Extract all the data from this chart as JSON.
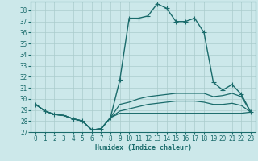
{
  "xlabel": "Humidex (Indice chaleur)",
  "ylabel": "",
  "xlim": [
    -0.5,
    23.5
  ],
  "ylim": [
    27,
    38.8
  ],
  "yticks": [
    27,
    28,
    29,
    30,
    31,
    32,
    33,
    34,
    35,
    36,
    37,
    38
  ],
  "xticks": [
    0,
    1,
    2,
    3,
    4,
    5,
    6,
    7,
    8,
    9,
    10,
    11,
    12,
    13,
    14,
    15,
    16,
    17,
    18,
    19,
    20,
    21,
    22,
    23
  ],
  "bg_color": "#cce8ea",
  "grid_color": "#aacccc",
  "line_color": "#1a6b6b",
  "lines": [
    {
      "x": [
        0,
        1,
        2,
        3,
        4,
        5,
        6,
        7,
        8,
        9,
        10,
        11,
        12,
        13,
        14,
        15,
        16,
        17,
        18,
        19,
        20,
        21,
        22,
        23
      ],
      "y": [
        29.5,
        28.9,
        28.6,
        28.5,
        28.2,
        28.0,
        27.2,
        27.3,
        28.3,
        31.7,
        37.3,
        37.3,
        37.5,
        38.6,
        38.2,
        37.0,
        37.0,
        37.3,
        36.0,
        31.5,
        30.8,
        31.3,
        30.4,
        28.8
      ],
      "marker": "+",
      "markersize": 4,
      "linewidth": 1.0
    },
    {
      "x": [
        0,
        1,
        2,
        3,
        4,
        5,
        6,
        7,
        8,
        9,
        10,
        11,
        12,
        13,
        14,
        15,
        16,
        17,
        18,
        19,
        20,
        21,
        22,
        23
      ],
      "y": [
        29.5,
        28.9,
        28.6,
        28.5,
        28.2,
        28.0,
        27.2,
        27.3,
        28.3,
        29.5,
        29.7,
        30.0,
        30.2,
        30.3,
        30.4,
        30.5,
        30.5,
        30.5,
        30.5,
        30.2,
        30.3,
        30.5,
        30.2,
        28.8
      ],
      "marker": null,
      "linewidth": 0.9
    },
    {
      "x": [
        0,
        1,
        2,
        3,
        4,
        5,
        6,
        7,
        8,
        9,
        10,
        11,
        12,
        13,
        14,
        15,
        16,
        17,
        18,
        19,
        20,
        21,
        22,
        23
      ],
      "y": [
        29.5,
        28.9,
        28.6,
        28.5,
        28.2,
        28.0,
        27.2,
        27.3,
        28.3,
        28.9,
        29.1,
        29.3,
        29.5,
        29.6,
        29.7,
        29.8,
        29.8,
        29.8,
        29.7,
        29.5,
        29.5,
        29.6,
        29.4,
        28.8
      ],
      "marker": null,
      "linewidth": 0.9
    },
    {
      "x": [
        0,
        1,
        2,
        3,
        4,
        5,
        6,
        7,
        8,
        9,
        10,
        11,
        12,
        13,
        14,
        15,
        16,
        17,
        18,
        19,
        20,
        21,
        22,
        23
      ],
      "y": [
        29.5,
        28.9,
        28.6,
        28.5,
        28.2,
        28.0,
        27.2,
        27.3,
        28.3,
        28.7,
        28.7,
        28.7,
        28.7,
        28.7,
        28.7,
        28.7,
        28.7,
        28.7,
        28.7,
        28.7,
        28.7,
        28.7,
        28.7,
        28.8
      ],
      "marker": null,
      "linewidth": 0.9
    }
  ]
}
